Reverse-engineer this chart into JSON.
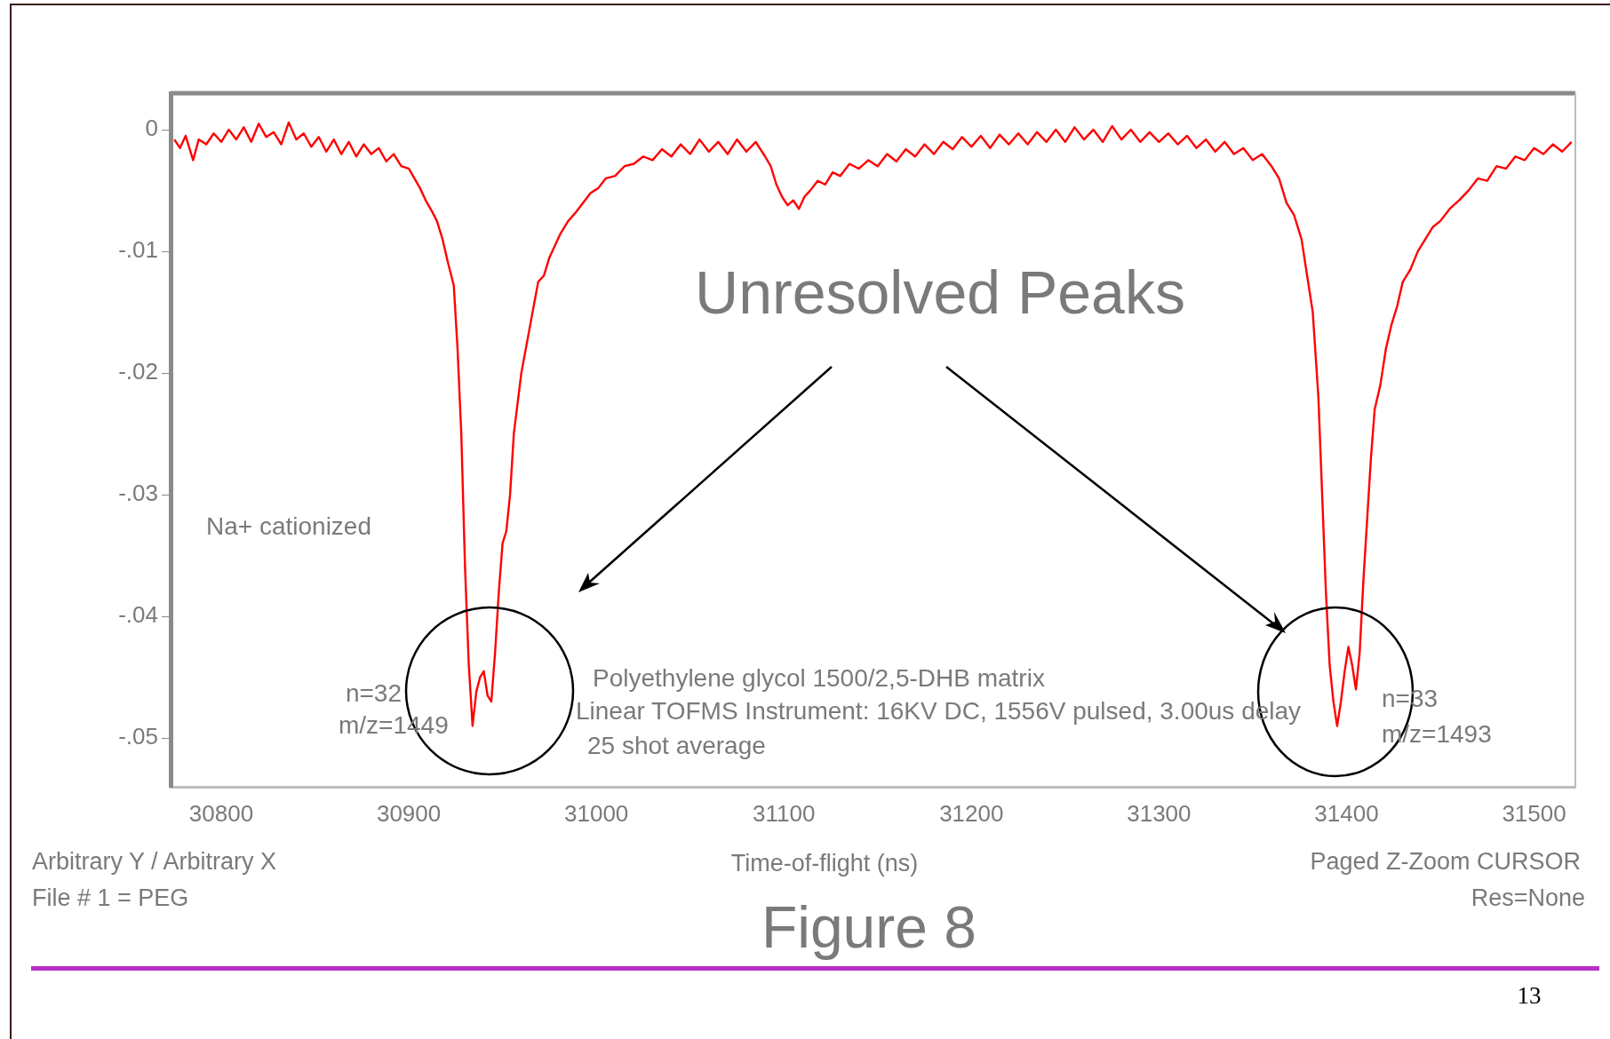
{
  "chart_data": {
    "type": "line",
    "xlabel": "Time-of-flight (ns)",
    "x": [
      30775,
      30778,
      30781,
      30785,
      30788,
      30792,
      30796,
      30800,
      30804,
      30808,
      30812,
      30816,
      30820,
      30824,
      30828,
      30832,
      30836,
      30840,
      30844,
      30848,
      30852,
      30856,
      30860,
      30864,
      30868,
      30872,
      30876,
      30880,
      30884,
      30888,
      30892,
      30896,
      30900,
      30903,
      30906,
      30909,
      30912,
      30915,
      30918,
      30921,
      30924,
      30926,
      30928,
      30930,
      30932,
      30934,
      30936,
      30938,
      30940,
      30942,
      30944,
      30946,
      30948,
      30950,
      30952,
      30954,
      30956,
      30958,
      30960,
      30963,
      30966,
      30969,
      30972,
      30975,
      30978,
      30981,
      30985,
      30989,
      30993,
      30997,
      31001,
      31005,
      31010,
      31015,
      31020,
      31025,
      31030,
      31035,
      31040,
      31045,
      31050,
      31055,
      31060,
      31065,
      31070,
      31075,
      31080,
      31085,
      31090,
      31093,
      31096,
      31099,
      31102,
      31105,
      31108,
      31111,
      31114,
      31118,
      31122,
      31126,
      31130,
      31135,
      31140,
      31145,
      31150,
      31155,
      31160,
      31165,
      31170,
      31175,
      31180,
      31185,
      31190,
      31195,
      31200,
      31205,
      31210,
      31215,
      31220,
      31225,
      31230,
      31235,
      31240,
      31245,
      31250,
      31255,
      31260,
      31265,
      31270,
      31275,
      31280,
      31285,
      31290,
      31295,
      31300,
      31305,
      31310,
      31315,
      31320,
      31325,
      31330,
      31335,
      31340,
      31345,
      31350,
      31355,
      31360,
      31364,
      31368,
      31372,
      31376,
      31379,
      31382,
      31385,
      31387,
      31389,
      31391,
      31393,
      31395,
      31397,
      31399,
      31401,
      31403,
      31405,
      31407,
      31409,
      31411,
      31413,
      31415,
      31418,
      31421,
      31424,
      31427,
      31430,
      31434,
      31438,
      31442,
      31446,
      31450,
      31455,
      31460,
      31465,
      31470,
      31475,
      31480,
      31485,
      31490,
      31495,
      31500,
      31505,
      31510,
      31515,
      31520
    ],
    "series": [
      {
        "color": "#ff0000",
        "values": [
          -0.0008,
          -0.0015,
          -0.0005,
          -0.0025,
          -0.0008,
          -0.0012,
          -0.0003,
          -0.001,
          0,
          -0.0008,
          0.0002,
          -0.001,
          0.0005,
          -0.0006,
          -0.0002,
          -0.0012,
          0.0006,
          -0.0008,
          -0.0003,
          -0.0014,
          -0.0006,
          -0.0018,
          -0.0008,
          -0.002,
          -0.001,
          -0.0022,
          -0.0012,
          -0.002,
          -0.0015,
          -0.0026,
          -0.002,
          -0.003,
          -0.0032,
          -0.004,
          -0.0048,
          -0.0058,
          -0.0066,
          -0.0075,
          -0.009,
          -0.011,
          -0.0128,
          -0.018,
          -0.025,
          -0.036,
          -0.044,
          -0.049,
          -0.0462,
          -0.045,
          -0.0445,
          -0.0465,
          -0.047,
          -0.043,
          -0.038,
          -0.034,
          -0.033,
          -0.03,
          -0.025,
          -0.0225,
          -0.02,
          -0.0175,
          -0.015,
          -0.0125,
          -0.012,
          -0.0105,
          -0.0095,
          -0.0085,
          -0.0075,
          -0.0068,
          -0.006,
          -0.0052,
          -0.0048,
          -0.004,
          -0.0038,
          -0.003,
          -0.0028,
          -0.0022,
          -0.0025,
          -0.0016,
          -0.0022,
          -0.0012,
          -0.002,
          -0.0008,
          -0.0018,
          -0.001,
          -0.002,
          -0.0008,
          -0.0018,
          -0.001,
          -0.0022,
          -0.003,
          -0.0045,
          -0.0055,
          -0.0062,
          -0.0058,
          -0.0065,
          -0.0055,
          -0.005,
          -0.0042,
          -0.0045,
          -0.0035,
          -0.0038,
          -0.0028,
          -0.0032,
          -0.0025,
          -0.003,
          -0.002,
          -0.0026,
          -0.0016,
          -0.0022,
          -0.0012,
          -0.002,
          -0.001,
          -0.0016,
          -0.0006,
          -0.0014,
          -0.0005,
          -0.0015,
          -0.0004,
          -0.0012,
          -0.0003,
          -0.0012,
          -0.0002,
          -0.001,
          0,
          -0.001,
          0.0002,
          -0.0008,
          0,
          -0.001,
          0.0003,
          -0.0008,
          0,
          -0.001,
          -0.0002,
          -0.001,
          -0.0003,
          -0.0012,
          -0.0005,
          -0.0015,
          -0.0008,
          -0.0018,
          -0.001,
          -0.002,
          -0.0015,
          -0.0025,
          -0.002,
          -0.003,
          -0.004,
          -0.006,
          -0.007,
          -0.009,
          -0.012,
          -0.015,
          -0.022,
          -0.03,
          -0.038,
          -0.044,
          -0.047,
          -0.049,
          -0.047,
          -0.0445,
          -0.0425,
          -0.044,
          -0.046,
          -0.043,
          -0.037,
          -0.032,
          -0.027,
          -0.023,
          -0.021,
          -0.018,
          -0.016,
          -0.0145,
          -0.0125,
          -0.0115,
          -0.01,
          -0.009,
          -0.008,
          -0.0075,
          -0.0065,
          -0.0058,
          -0.005,
          -0.004,
          -0.0042,
          -0.003,
          -0.0032,
          -0.0022,
          -0.0025,
          -0.0015,
          -0.002,
          -0.0012,
          -0.0018,
          -0.001
        ]
      }
    ],
    "xlim": [
      30773,
      31522
    ],
    "xticks": [
      30800,
      30900,
      31000,
      31100,
      31200,
      31300,
      31400,
      31500
    ],
    "ylim": [
      -0.054,
      0.003
    ],
    "yticks": [
      {
        "value": 0,
        "label": "0"
      },
      {
        "value": -0.01,
        "label": "-.01"
      },
      {
        "value": -0.02,
        "label": "-.02"
      },
      {
        "value": -0.03,
        "label": "-.03"
      },
      {
        "value": -0.04,
        "label": "-.04"
      },
      {
        "value": -0.05,
        "label": "-.05"
      }
    ],
    "grid": false,
    "legend": false,
    "marker": "none",
    "line_style": "solid",
    "annotations": [
      "Unresolved Peaks",
      "Na+ cationized",
      "n=32",
      "m/z=1449",
      "n=33",
      "m/z=1493",
      "Polyethylene glycol 1500/2,5-DHB matrix",
      "Linear TOFMS Instrument: 16KV DC, 1556V pulsed, 3.00us delay",
      "25 shot average",
      "Arbitrary Y / Arbitrary X",
      "File # 1 = PEG",
      "Paged  Z-Zoom CURSOR",
      "Res=None",
      "Figure 8",
      "13"
    ]
  }
}
